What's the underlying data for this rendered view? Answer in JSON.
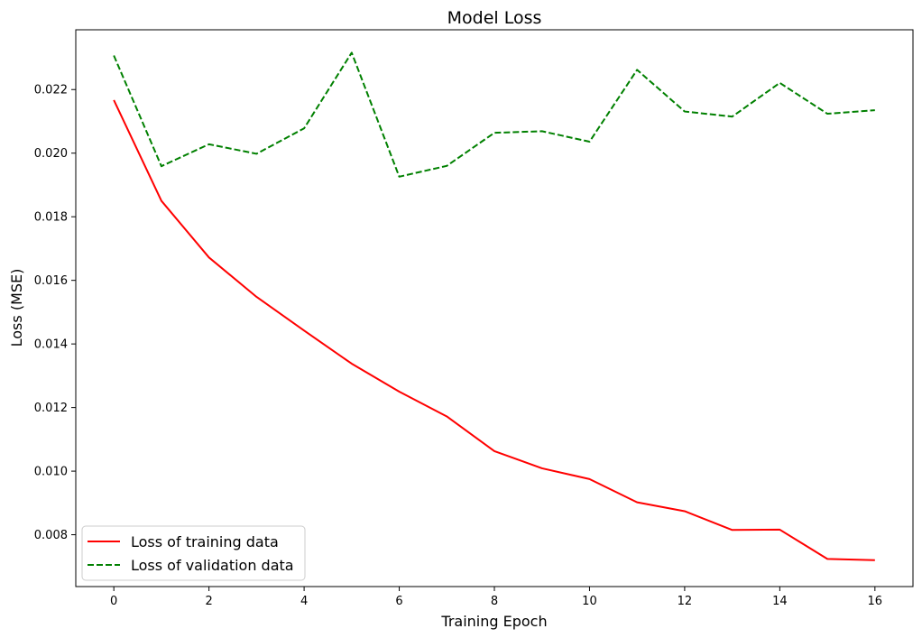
{
  "chart_data": {
    "type": "line",
    "title": "Model Loss",
    "xlabel": "Training Epoch",
    "ylabel": "Loss (MSE)",
    "xlim": [
      -0.8,
      16.8
    ],
    "ylim": [
      0.00637,
      0.02388
    ],
    "xticks": [
      0,
      2,
      4,
      6,
      8,
      10,
      12,
      14,
      16
    ],
    "yticks": [
      0.008,
      0.01,
      0.012,
      0.014,
      0.016,
      0.018,
      0.02,
      0.022
    ],
    "ytick_labels": [
      "0.008",
      "0.010",
      "0.012",
      "0.014",
      "0.016",
      "0.018",
      "0.020",
      "0.022"
    ],
    "grid": false,
    "legend_position": "lower-left",
    "x": [
      0,
      1,
      2,
      3,
      4,
      5,
      6,
      7,
      8,
      9,
      10,
      11,
      12,
      13,
      14,
      15,
      16
    ],
    "series": [
      {
        "name": "Loss of training data",
        "color": "#ff0000",
        "style": "solid",
        "values": [
          0.02167,
          0.0185,
          0.01672,
          0.01548,
          0.01442,
          0.01338,
          0.0125,
          0.01172,
          0.01063,
          0.01009,
          0.00975,
          0.00902,
          0.00874,
          0.00815,
          0.00816,
          0.00724,
          0.0072
        ]
      },
      {
        "name": "Loss of validation data",
        "color": "#008000",
        "style": "dashed",
        "values": [
          0.02307,
          0.01959,
          0.02028,
          0.01998,
          0.02078,
          0.02316,
          0.01926,
          0.0196,
          0.02064,
          0.02069,
          0.02036,
          0.02262,
          0.02131,
          0.02115,
          0.02221,
          0.02124,
          0.02135
        ]
      }
    ]
  }
}
